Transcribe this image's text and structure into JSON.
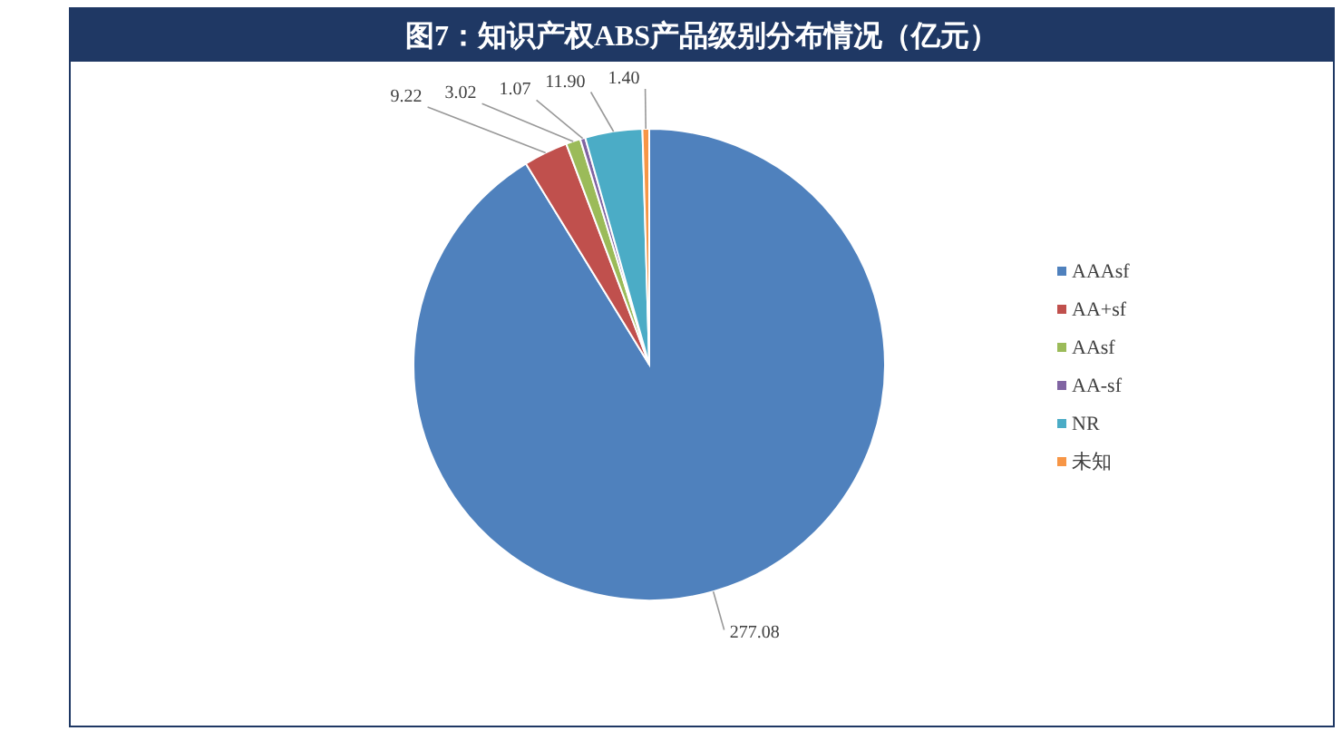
{
  "chart_data": {
    "type": "pie",
    "title": "图7：知识产权ABS产品级别分布情况（亿元）",
    "categories": [
      "AAAsf",
      "AA+sf",
      "AAsf",
      "AA-sf",
      "NR",
      "未知"
    ],
    "values": [
      277.08,
      9.22,
      3.02,
      1.07,
      11.9,
      1.4
    ],
    "colors": [
      "#4f81bd",
      "#c0504d",
      "#9bbb59",
      "#8064a2",
      "#4bacc6",
      "#f79646"
    ],
    "value_labels": [
      "277.08",
      "9.22",
      "3.02",
      "1.07",
      "11.90",
      "1.40"
    ],
    "legend": "right"
  }
}
